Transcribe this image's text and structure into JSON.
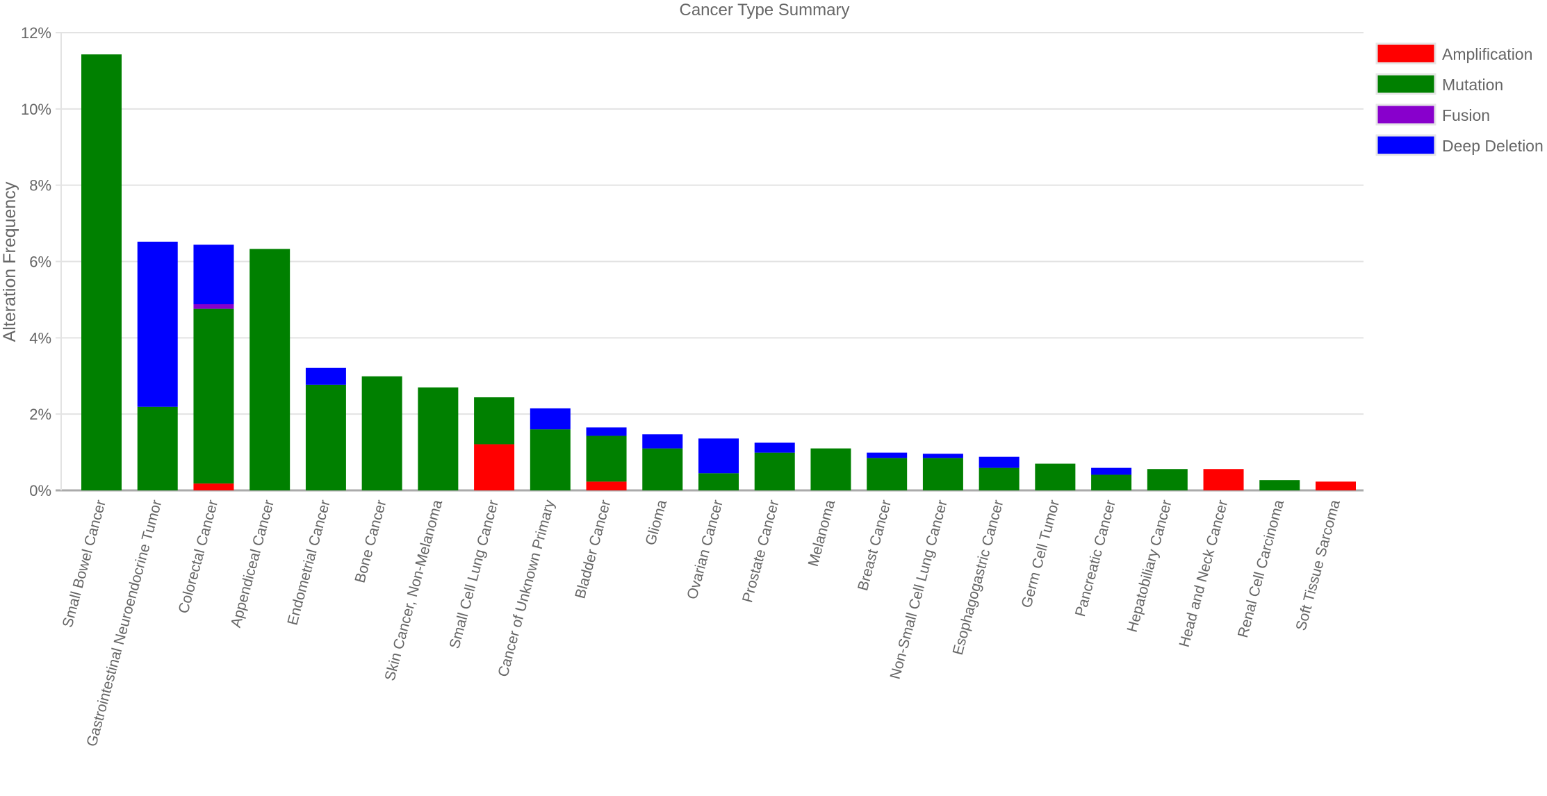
{
  "chart_data": {
    "type": "bar",
    "stacked": true,
    "title": "Cancer Type Summary",
    "xlabel": "",
    "ylabel": "Alteration Frequency",
    "ylim": [
      0,
      12
    ],
    "yticks": [
      "0%",
      "2%",
      "4%",
      "6%",
      "8%",
      "10%",
      "12%"
    ],
    "grid": true,
    "legend_position": "right",
    "categories": [
      "Small Bowel Cancer",
      "Gastrointestinal Neuroendocrine Tumor",
      "Colorectal Cancer",
      "Appendiceal Cancer",
      "Endometrial Cancer",
      "Bone Cancer",
      "Skin Cancer, Non-Melanoma",
      "Small Cell Lung Cancer",
      "Cancer of Unknown Primary",
      "Bladder Cancer",
      "Glioma",
      "Ovarian Cancer",
      "Prostate Cancer",
      "Melanoma",
      "Breast Cancer",
      "Non-Small Cell Lung Cancer",
      "Esophagogastric Cancer",
      "Germ Cell Tumor",
      "Pancreatic Cancer",
      "Hepatobiliary Cancer",
      "Head and Neck Cancer",
      "Renal Cell Carcinoma",
      "Soft Tissue Sarcoma"
    ],
    "series": [
      {
        "name": "Amplification",
        "color": "#ff0000",
        "values": [
          0,
          0,
          0.18,
          0,
          0,
          0,
          0,
          1.21,
          0,
          0.23,
          0,
          0,
          0,
          0,
          0,
          0,
          0,
          0,
          0,
          0,
          0.56,
          0,
          0.23
        ]
      },
      {
        "name": "Mutation",
        "color": "#008000",
        "values": [
          11.43,
          2.19,
          4.58,
          6.33,
          2.77,
          2.99,
          2.7,
          1.23,
          1.6,
          1.2,
          1.1,
          0.45,
          0.99,
          1.1,
          0.85,
          0.85,
          0.59,
          0.7,
          0.41,
          0.56,
          0,
          0.27,
          0
        ]
      },
      {
        "name": "Fusion",
        "color": "#8800cc",
        "values": [
          0,
          0,
          0.12,
          0,
          0,
          0,
          0,
          0,
          0,
          0,
          0,
          0,
          0,
          0,
          0,
          0,
          0,
          0,
          0,
          0,
          0,
          0,
          0
        ]
      },
      {
        "name": "Deep Deletion",
        "color": "#0000ff",
        "values": [
          0,
          4.33,
          1.56,
          0,
          0.44,
          0,
          0,
          0,
          0.55,
          0.22,
          0.37,
          0.91,
          0.26,
          0,
          0.14,
          0.11,
          0.29,
          0,
          0.18,
          0,
          0,
          0,
          0
        ]
      }
    ]
  }
}
